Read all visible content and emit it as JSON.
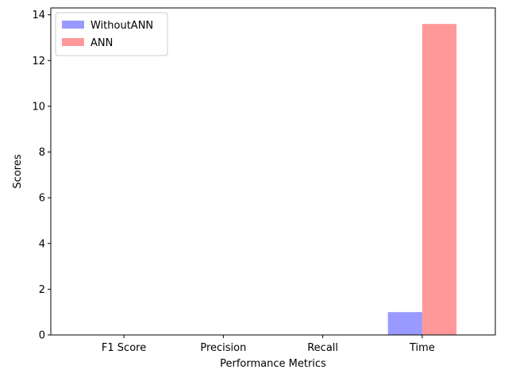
{
  "chart_data": {
    "type": "bar",
    "title": "",
    "xlabel": "Performance Metrics",
    "ylabel": "Scores",
    "categories": [
      "F1 Score",
      "Precision",
      "Recall",
      "Time"
    ],
    "ylim": [
      0,
      14.3
    ],
    "yticks": [
      0,
      2,
      4,
      6,
      8,
      10,
      12,
      14
    ],
    "series": [
      {
        "name": "WithoutANN",
        "values": [
          0.0,
          0.01,
          0.0,
          1.0
        ],
        "color": "#9999ff"
      },
      {
        "name": "ANN",
        "values": [
          0.01,
          0.01,
          0.01,
          13.6
        ],
        "color": "#ff9999"
      }
    ],
    "legend_position": "upper-left",
    "grid": false
  }
}
